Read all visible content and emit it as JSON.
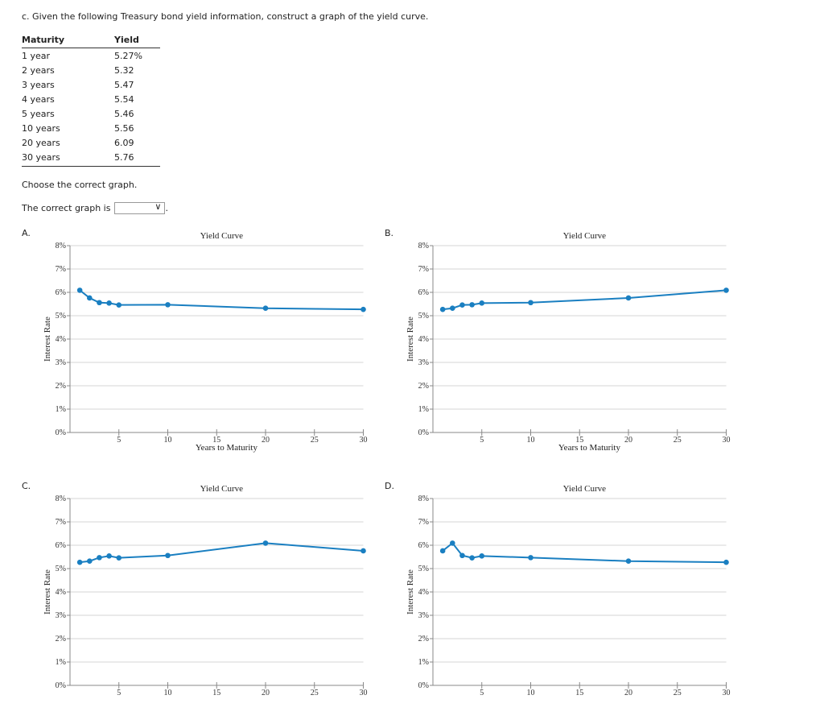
{
  "question": "c. Given the following Treasury bond yield information, construct a graph of the yield curve.",
  "table": {
    "headers": [
      "Maturity",
      "Yield"
    ],
    "rows": [
      [
        "1 year",
        "5.27%"
      ],
      [
        "2 years",
        "5.32"
      ],
      [
        "3 years",
        "5.47"
      ],
      [
        "4 years",
        "5.54"
      ],
      [
        "5 years",
        "5.46"
      ],
      [
        "10 years",
        "5.56"
      ],
      [
        "20 years",
        "6.09"
      ],
      [
        "30 years",
        "5.76"
      ]
    ]
  },
  "choose_text": "Choose the correct graph.",
  "answer_label": "The correct graph is",
  "answer_value": "",
  "line_color": "#1a7fc1",
  "chart_data": [
    {
      "option": "A.",
      "type": "line",
      "title": "Yield Curve",
      "xlabel": "Years to Maturity",
      "ylabel": "Interest Rate",
      "x": [
        1,
        2,
        3,
        4,
        5,
        10,
        20,
        30
      ],
      "y": [
        6.09,
        5.76,
        5.56,
        5.54,
        5.46,
        5.47,
        5.32,
        5.27
      ],
      "xlim": [
        0,
        30
      ],
      "ylim": [
        0,
        8
      ],
      "xticks": [
        "5",
        "10",
        "15",
        "20",
        "25",
        "30"
      ],
      "yticks": [
        "0%",
        "1%",
        "2%",
        "3%",
        "4%",
        "5%",
        "6%",
        "7%",
        "8%"
      ],
      "grid": true
    },
    {
      "option": "B.",
      "type": "line",
      "title": "Yield Curve",
      "xlabel": "Years to Maturity",
      "ylabel": "Interest Rate",
      "x": [
        1,
        2,
        3,
        4,
        5,
        10,
        20,
        30
      ],
      "y": [
        5.27,
        5.32,
        5.46,
        5.47,
        5.54,
        5.56,
        5.76,
        6.09
      ],
      "xlim": [
        0,
        30
      ],
      "ylim": [
        0,
        8
      ],
      "xticks": [
        "5",
        "10",
        "15",
        "20",
        "25",
        "30"
      ],
      "yticks": [
        "0%",
        "1%",
        "2%",
        "3%",
        "4%",
        "5%",
        "6%",
        "7%",
        "8%"
      ],
      "grid": true
    },
    {
      "option": "C.",
      "type": "line",
      "title": "Yield Curve",
      "xlabel": "",
      "ylabel": "Interest Rate",
      "x": [
        1,
        2,
        3,
        4,
        5,
        10,
        20,
        30
      ],
      "y": [
        5.27,
        5.32,
        5.47,
        5.54,
        5.46,
        5.56,
        6.09,
        5.76
      ],
      "xlim": [
        0,
        30
      ],
      "ylim": [
        0,
        8
      ],
      "xticks": [
        "5",
        "10",
        "15",
        "20",
        "25",
        "30"
      ],
      "yticks": [
        "0%",
        "1%",
        "2%",
        "3%",
        "4%",
        "5%",
        "6%",
        "7%",
        "8%"
      ],
      "grid": true
    },
    {
      "option": "D.",
      "type": "line",
      "title": "Yield Curve",
      "xlabel": "",
      "ylabel": "Interest Rate",
      "x": [
        1,
        2,
        3,
        4,
        5,
        10,
        20,
        30
      ],
      "y": [
        5.76,
        6.09,
        5.56,
        5.46,
        5.54,
        5.47,
        5.32,
        5.27
      ],
      "xlim": [
        0,
        30
      ],
      "ylim": [
        0,
        8
      ],
      "xticks": [
        "5",
        "10",
        "15",
        "20",
        "25",
        "30"
      ],
      "yticks": [
        "0%",
        "1%",
        "2%",
        "3%",
        "4%",
        "5%",
        "6%",
        "7%",
        "8%"
      ],
      "grid": true
    }
  ]
}
